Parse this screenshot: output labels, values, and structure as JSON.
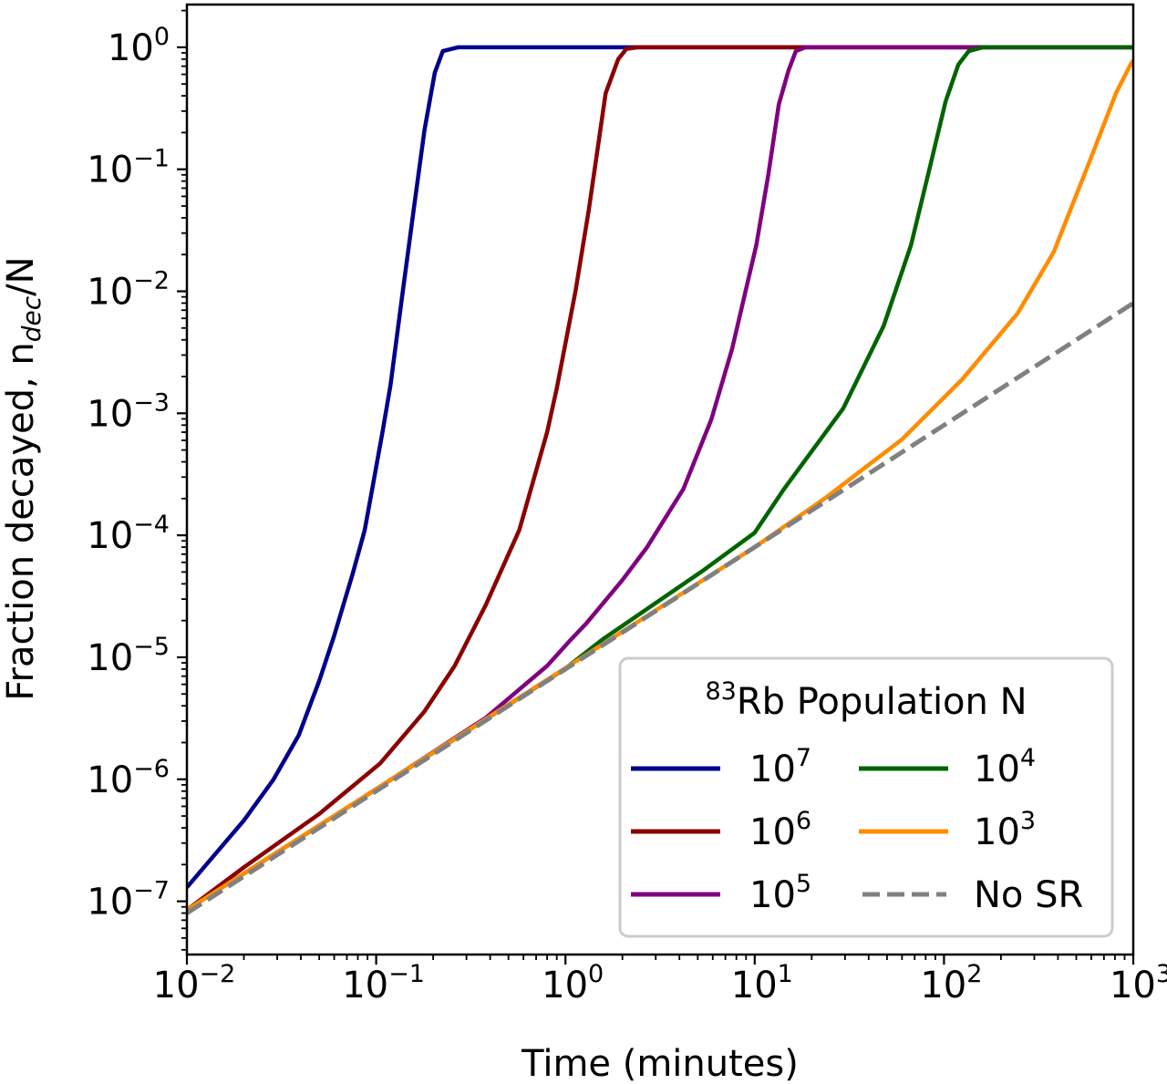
{
  "chart_data": {
    "type": "line",
    "xscale": "log",
    "yscale": "log",
    "xlim": [
      0.01,
      1000
    ],
    "ylim": [
      3.66e-08,
      2.24
    ],
    "grid": false,
    "xlabel": "Time (minutes)",
    "ylabel": {
      "prefix": "Fraction decayed, n",
      "subscript": "dec",
      "suffix": "/N"
    },
    "x_ticks": [
      {
        "value": 0.01,
        "base": "10",
        "exp": "−2"
      },
      {
        "value": 0.1,
        "base": "10",
        "exp": "−1"
      },
      {
        "value": 1,
        "base": "10",
        "exp": "0"
      },
      {
        "value": 10,
        "base": "10",
        "exp": "1"
      },
      {
        "value": 100,
        "base": "10",
        "exp": "2"
      },
      {
        "value": 1000,
        "base": "10",
        "exp": "3"
      }
    ],
    "y_ticks": [
      {
        "value": 1,
        "base": "10",
        "exp": "0"
      },
      {
        "value": 0.1,
        "base": "10",
        "exp": "−1"
      },
      {
        "value": 0.01,
        "base": "10",
        "exp": "−2"
      },
      {
        "value": 0.001,
        "base": "10",
        "exp": "−3"
      },
      {
        "value": 0.0001,
        "base": "10",
        "exp": "−4"
      },
      {
        "value": 1e-05,
        "base": "10",
        "exp": "−5"
      },
      {
        "value": 1e-06,
        "base": "10",
        "exp": "−6"
      },
      {
        "value": 1e-07,
        "base": "10",
        "exp": "−7"
      }
    ],
    "legend": {
      "title_sup": "83",
      "title": "Rb Population N",
      "placement": "lower-right",
      "columns": 2
    },
    "series": [
      {
        "name_base": "10",
        "name_exp": "7",
        "color": "#00008B",
        "style": "solid",
        "points": [
          [
            0.01,
            1.3e-07
          ],
          [
            0.02,
            4.6e-07
          ],
          [
            0.0287,
            1e-06
          ],
          [
            0.039,
            2.3e-06
          ],
          [
            0.05,
            6.4e-06
          ],
          [
            0.06,
            1.5e-05
          ],
          [
            0.075,
            4.8e-05
          ],
          [
            0.087,
            0.00011
          ],
          [
            0.097,
            0.00028
          ],
          [
            0.108,
            0.0007
          ],
          [
            0.119,
            0.0017
          ],
          [
            0.137,
            0.009
          ],
          [
            0.158,
            0.047
          ],
          [
            0.18,
            0.21
          ],
          [
            0.204,
            0.62
          ],
          [
            0.225,
            0.93
          ],
          [
            0.27,
            1
          ],
          [
            1000,
            1
          ]
        ]
      },
      {
        "name_base": "10",
        "name_exp": "6",
        "color": "#8B0000",
        "style": "solid",
        "points": [
          [
            0.01,
            8.5e-08
          ],
          [
            0.02,
            1.9e-07
          ],
          [
            0.05,
            5.2e-07
          ],
          [
            0.105,
            1.35e-06
          ],
          [
            0.18,
            3.6e-06
          ],
          [
            0.26,
            8.5e-06
          ],
          [
            0.38,
            2.7e-05
          ],
          [
            0.57,
            0.00011
          ],
          [
            0.8,
            0.0007
          ],
          [
            0.9,
            0.0016
          ],
          [
            1.13,
            0.01
          ],
          [
            1.33,
            0.047
          ],
          [
            1.63,
            0.42
          ],
          [
            1.9,
            0.8
          ],
          [
            2.1,
            0.97
          ],
          [
            2.4,
            1
          ],
          [
            1000,
            1
          ]
        ]
      },
      {
        "name_base": "10",
        "name_exp": "5",
        "color": "#800080",
        "style": "solid",
        "points": [
          [
            0.01,
            8.5e-08
          ],
          [
            0.1,
            8.3e-07
          ],
          [
            0.38,
            3.2e-06
          ],
          [
            0.8,
            8.5e-06
          ],
          [
            1.07,
            1.4e-05
          ],
          [
            1.29,
            1.9e-05
          ],
          [
            2.0,
            4.3e-05
          ],
          [
            2.7,
            8e-05
          ],
          [
            4.2,
            0.00024
          ],
          [
            5.9,
            0.00089
          ],
          [
            7.6,
            0.0034
          ],
          [
            8.8,
            0.009
          ],
          [
            10.2,
            0.024
          ],
          [
            11.8,
            0.09
          ],
          [
            13.4,
            0.34
          ],
          [
            15.1,
            0.65
          ],
          [
            16.5,
            0.93
          ],
          [
            18.5,
            1
          ],
          [
            1000,
            1
          ]
        ]
      },
      {
        "name_base": "10",
        "name_exp": "4",
        "color": "#006400",
        "style": "solid",
        "points": [
          [
            0.01,
            8.5e-08
          ],
          [
            1,
            8.1e-06
          ],
          [
            1.57,
            1.4e-05
          ],
          [
            5.4,
            5.2e-05
          ],
          [
            10,
            0.000105
          ],
          [
            14.3,
            0.00024
          ],
          [
            29.4,
            0.0011
          ],
          [
            48,
            0.0052
          ],
          [
            67,
            0.024
          ],
          [
            85,
            0.11
          ],
          [
            102,
            0.36
          ],
          [
            119,
            0.72
          ],
          [
            135,
            0.93
          ],
          [
            160,
            1
          ],
          [
            1000,
            1
          ]
        ]
      },
      {
        "name_base": "10",
        "name_exp": "3",
        "color": "#FF8C00",
        "style": "solid",
        "points": [
          [
            0.01,
            8.5e-08
          ],
          [
            10,
            8e-05
          ],
          [
            23.4,
            0.0002
          ],
          [
            60,
            0.00061
          ],
          [
            125,
            0.0019
          ],
          [
            245,
            0.0066
          ],
          [
            380,
            0.021
          ],
          [
            605,
            0.13
          ],
          [
            810,
            0.42
          ],
          [
            966,
            0.72
          ],
          [
            1000,
            0.78
          ]
        ]
      },
      {
        "name": "No SR",
        "color": "#808080",
        "style": "dashed",
        "points": [
          [
            0.01,
            8e-08
          ],
          [
            1000,
            0.008
          ]
        ]
      }
    ]
  }
}
